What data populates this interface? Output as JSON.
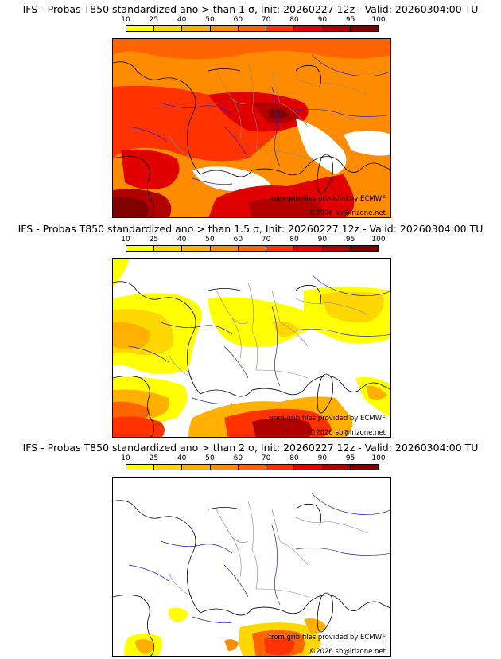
{
  "colorbar": {
    "labels": [
      "10",
      "25",
      "40",
      "50",
      "60",
      "70",
      "80",
      "90",
      "95",
      "100"
    ],
    "colors": [
      "#ffff00",
      "#ffd700",
      "#ffb000",
      "#ff8c00",
      "#ff6400",
      "#ff3200",
      "#e00000",
      "#b00000",
      "#800000"
    ]
  },
  "panels": [
    {
      "title": "IFS - Probas T850  standardized ano > than 1 σ, Init: 20260227 12z - Valid: 20260304:00 TU",
      "source_credit": "from grib files provided by ECMWF",
      "copyright": "©2026 sb@irizone.net",
      "coverage": "high"
    },
    {
      "title": "IFS - Probas T850  standardized ano > than 1.5 σ, Init: 20260227 12z - Valid: 20260304:00 TU",
      "source_credit": "from grib files provided by ECMWF",
      "copyright": "©2026 sb@irizone.net",
      "coverage": "medium"
    },
    {
      "title": "IFS - Probas T850  standardized ano > than 2 σ, Init: 20260227 12z - Valid: 20260304:00 TU",
      "source_credit": "from grib files provided by ECMWF",
      "copyright": "©2026 sb@irizone.net",
      "coverage": "low"
    }
  ],
  "map_colors": {
    "coastline": "#000000",
    "rivers": "#2222cc",
    "borders": "#888888"
  }
}
